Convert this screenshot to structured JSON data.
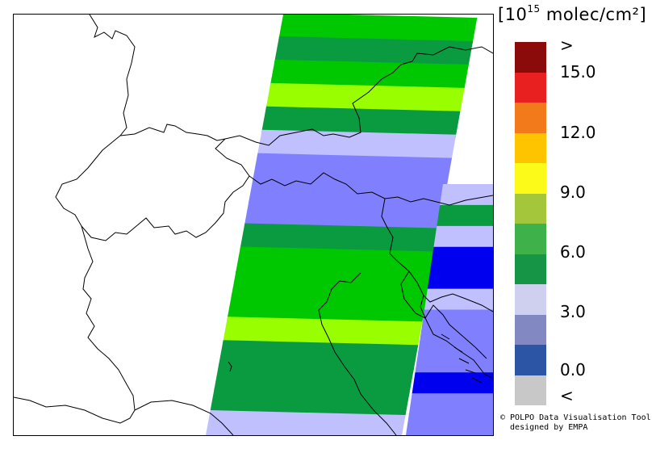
{
  "legend": {
    "unit_prefix": "[10",
    "unit_exp": "15",
    "unit_suffix": " molec/cm²]",
    "ticks": [
      {
        "label": ">"
      },
      {
        "label": "15.0"
      },
      {
        "label": "12.0"
      },
      {
        "label": "9.0"
      },
      {
        "label": "6.0"
      },
      {
        "label": "3.0"
      },
      {
        "label": "0.0"
      },
      {
        "label": "<"
      }
    ],
    "swatches": [
      {
        "color": "#8b0a0a",
        "level": "above-range"
      },
      {
        "color": "#e8201f",
        "level": "15.0"
      },
      {
        "color": "#f27a1b",
        "level": "13.5"
      },
      {
        "color": "#fec400",
        "level": "12.0"
      },
      {
        "color": "#fbfa19",
        "level": "10.5"
      },
      {
        "color": "#a3c63b",
        "level": "9.0"
      },
      {
        "color": "#3fb14a",
        "level": "7.5"
      },
      {
        "color": "#179546",
        "level": "6.0"
      },
      {
        "color": "#cfcfef",
        "level": "4.5"
      },
      {
        "color": "#8188c2",
        "level": "3.0"
      },
      {
        "color": "#2d55a6",
        "level": "1.5"
      },
      {
        "color": "#c8c8c8",
        "level": "below-range"
      }
    ]
  },
  "credit": {
    "line1": "© POLPO Data Visualisation Tool",
    "line2": "  designed by EMPA"
  },
  "swath": {
    "colors": {
      "dark_green": "#0a9b40",
      "green": "#00c800",
      "yellow_green": "#99ff00",
      "light_lavender": "#c0c0ff",
      "periwinkle": "#8080ff",
      "blue": "#0000ee"
    },
    "rows": [
      "green",
      "dark_green",
      "green",
      "yellow_green",
      "dark_green",
      "light_lavender",
      "periwinkle",
      "periwinkle",
      "periwinkle",
      "dark_green",
      "green",
      "green",
      "green",
      "yellow_green",
      "dark_green",
      "dark_green",
      "dark_green",
      "light_lavender"
    ],
    "east_rows": [
      "light_lavender",
      "dark_green",
      "light_lavender",
      "blue",
      "blue",
      "light_lavender",
      "periwinkle",
      "periwinkle",
      "periwinkle",
      "blue",
      "periwinkle",
      "periwinkle"
    ]
  }
}
